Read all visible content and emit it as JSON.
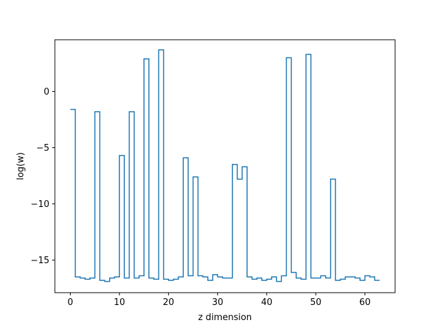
{
  "chart_data": {
    "type": "line",
    "drawstyle": "steps-post",
    "xlabel": "z dimension",
    "ylabel": "log(w)",
    "xlim": [
      -3.15,
      66.15
    ],
    "ylim": [
      -17.9,
      4.6
    ],
    "xticks": [
      0,
      10,
      20,
      30,
      40,
      50,
      60
    ],
    "yticks": [
      -15,
      -10,
      -5,
      0
    ],
    "grid": false,
    "series": [
      {
        "color": "#1f77b4",
        "x": [
          0,
          1,
          2,
          3,
          4,
          5,
          6,
          7,
          8,
          9,
          10,
          11,
          12,
          13,
          14,
          15,
          16,
          17,
          18,
          19,
          20,
          21,
          22,
          23,
          24,
          25,
          26,
          27,
          28,
          29,
          30,
          31,
          32,
          33,
          34,
          35,
          36,
          37,
          38,
          39,
          40,
          41,
          42,
          43,
          44,
          45,
          46,
          47,
          48,
          49,
          50,
          51,
          52,
          53,
          54,
          55,
          56,
          57,
          58,
          59,
          60,
          61,
          62,
          63
        ],
        "values": [
          -1.6,
          -16.5,
          -16.6,
          -16.7,
          -16.6,
          -1.8,
          -16.8,
          -16.9,
          -16.6,
          -16.5,
          -5.7,
          -16.6,
          -1.8,
          -16.6,
          -16.4,
          2.9,
          -16.6,
          -16.7,
          3.7,
          -16.7,
          -16.8,
          -16.7,
          -16.5,
          -5.9,
          -16.4,
          -7.6,
          -16.4,
          -16.5,
          -16.8,
          -16.3,
          -16.5,
          -16.6,
          -16.6,
          -6.5,
          -7.8,
          -6.7,
          -16.5,
          -16.7,
          -16.6,
          -16.8,
          -16.7,
          -16.5,
          -16.9,
          -16.4,
          3.0,
          -16.1,
          -16.6,
          -16.7,
          3.3,
          -16.6,
          -16.6,
          -16.4,
          -16.6,
          -7.8,
          -16.8,
          -16.7,
          -16.5,
          -16.5,
          -16.6,
          -16.8,
          -16.4,
          -16.5,
          -16.8,
          -16.8
        ]
      }
    ]
  }
}
